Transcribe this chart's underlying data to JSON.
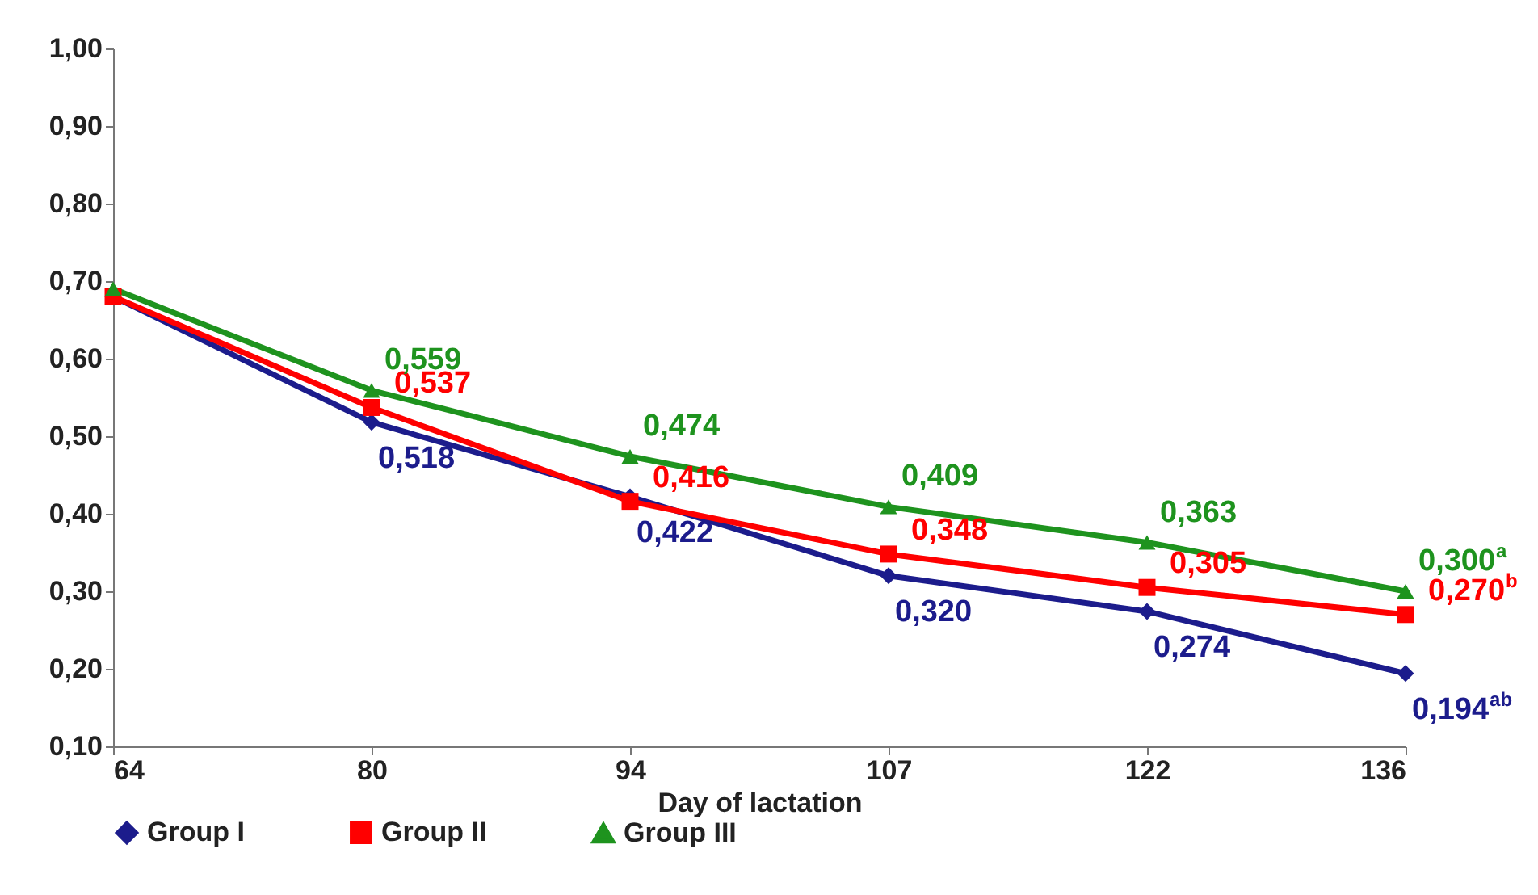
{
  "chart_data": {
    "type": "line",
    "xlabel": "Day of lactation",
    "categories": [
      "64",
      "80",
      "94",
      "107",
      "122",
      "136"
    ],
    "series": [
      {
        "name": "Group I",
        "color": "#1c1c8c",
        "marker": "diamond",
        "values": [
          0.68,
          0.518,
          0.422,
          0.32,
          0.274,
          0.194
        ],
        "value_labels": [
          null,
          "0,518",
          "0,422",
          "0,320",
          "0,274",
          "0,194$^{ab}$"
        ]
      },
      {
        "name": "Group II",
        "color": "#ff0000",
        "marker": "square",
        "values": [
          0.68,
          0.537,
          0.416,
          0.348,
          0.305,
          0.27
        ],
        "value_labels": [
          null,
          "0,537",
          "0,416",
          "0,348",
          "0,305",
          "0,270$^{b}$"
        ]
      },
      {
        "name": "Group III",
        "color": "#1e931e",
        "marker": "triangle",
        "values": [
          0.69,
          0.559,
          0.474,
          0.409,
          0.363,
          0.3
        ],
        "value_labels": [
          null,
          "0,559",
          "0,474",
          "0,409",
          "0,363",
          "0,300$^{a}$"
        ]
      }
    ],
    "ylim": [
      0.1,
      1.0
    ],
    "yticks": [
      {
        "value": 0.1,
        "label": "0,10"
      },
      {
        "value": 0.2,
        "label": "0,20"
      },
      {
        "value": 0.3,
        "label": "0,30"
      },
      {
        "value": 0.4,
        "label": "0,40"
      },
      {
        "value": 0.5,
        "label": "0,50"
      },
      {
        "value": 0.6,
        "label": "0,60"
      },
      {
        "value": 0.7,
        "label": "0,70"
      },
      {
        "value": 0.8,
        "label": "0,80"
      },
      {
        "value": 0.9,
        "label": "0,90"
      },
      {
        "value": 1.0,
        "label": "1,00"
      }
    ],
    "grid": false,
    "legend": "bottom",
    "line_style": "solid"
  }
}
